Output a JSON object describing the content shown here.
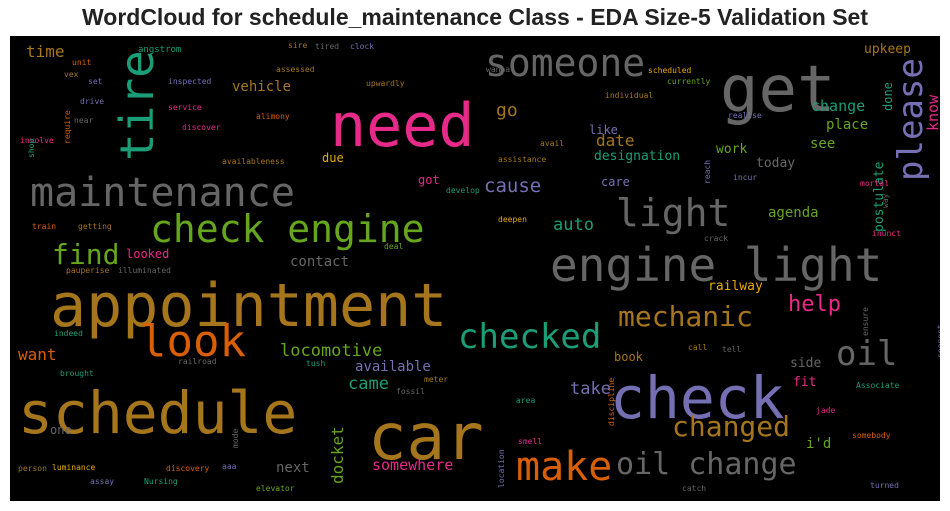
{
  "title": "WordCloud for schedule_maintenance Class - EDA Size-5 Validation Set",
  "chart_data": {
    "type": "wordcloud",
    "title": "WordCloud for schedule_maintenance Class - EDA Size-5 Validation Set",
    "background": "#000000",
    "palette": [
      "#1b9e77",
      "#d95f02",
      "#7570b3",
      "#e7298a",
      "#66a61e",
      "#e6ab02",
      "#a6761d",
      "#666666"
    ],
    "words": [
      {
        "text": "appointment",
        "color": "#a6761d",
        "vertical": false
      },
      {
        "text": "schedule",
        "color": "#a6761d",
        "vertical": false
      },
      {
        "text": "car",
        "color": "#a6761d",
        "vertical": false
      },
      {
        "text": "need",
        "color": "#e7298a",
        "vertical": false
      },
      {
        "text": "get",
        "color": "#666666",
        "vertical": false
      },
      {
        "text": "check",
        "color": "#7570b3",
        "vertical": false
      },
      {
        "text": "engine light",
        "color": "#666666",
        "vertical": false
      },
      {
        "text": "check engine",
        "color": "#66a61e",
        "vertical": false
      },
      {
        "text": "maintenance",
        "color": "#666666",
        "vertical": false
      },
      {
        "text": "someone",
        "color": "#666666",
        "vertical": false
      },
      {
        "text": "tire",
        "color": "#1b9e77",
        "vertical": true
      },
      {
        "text": "look",
        "color": "#d95f02",
        "vertical": false
      },
      {
        "text": "make",
        "color": "#d95f02",
        "vertical": false
      },
      {
        "text": "oil change",
        "color": "#666666",
        "vertical": false
      },
      {
        "text": "checked",
        "color": "#1b9e77",
        "vertical": false
      },
      {
        "text": "please",
        "color": "#7570b3",
        "vertical": true
      },
      {
        "text": "light",
        "color": "#666666",
        "vertical": false
      },
      {
        "text": "oil",
        "color": "#666666",
        "vertical": false
      },
      {
        "text": "mechanic",
        "color": "#a6761d",
        "vertical": false
      },
      {
        "text": "changed",
        "color": "#a6761d",
        "vertical": false
      },
      {
        "text": "find",
        "color": "#66a61e",
        "vertical": false
      },
      {
        "text": "help",
        "color": "#e7298a",
        "vertical": false
      },
      {
        "text": "locomotive",
        "color": "#66a61e",
        "vertical": false
      },
      {
        "text": "cause",
        "color": "#7570b3",
        "vertical": false
      },
      {
        "text": "auto",
        "color": "#1b9e77",
        "vertical": false
      },
      {
        "text": "date",
        "color": "#a6761d",
        "vertical": false
      },
      {
        "text": "go",
        "color": "#a6761d",
        "vertical": false
      },
      {
        "text": "came",
        "color": "#1b9e77",
        "vertical": false
      },
      {
        "text": "take",
        "color": "#7570b3",
        "vertical": false
      },
      {
        "text": "docket",
        "color": "#66a61e",
        "vertical": true
      },
      {
        "text": "somewhere",
        "color": "#e7298a",
        "vertical": false
      },
      {
        "text": "want",
        "color": "#d95f02",
        "vertical": false
      },
      {
        "text": "contact",
        "color": "#666666",
        "vertical": false
      },
      {
        "text": "available",
        "color": "#7570b3",
        "vertical": false
      },
      {
        "text": "next",
        "color": "#666666",
        "vertical": false
      },
      {
        "text": "change",
        "color": "#1b9e77",
        "vertical": false
      },
      {
        "text": "place",
        "color": "#66a61e",
        "vertical": false
      },
      {
        "text": "agenda",
        "color": "#66a61e",
        "vertical": false
      },
      {
        "text": "designation",
        "color": "#1b9e77",
        "vertical": false
      },
      {
        "text": "work",
        "color": "#66a61e",
        "vertical": false
      },
      {
        "text": "today",
        "color": "#666666",
        "vertical": false
      },
      {
        "text": "see",
        "color": "#66a61e",
        "vertical": false
      },
      {
        "text": "postulate",
        "color": "#1b9e77",
        "vertical": true
      },
      {
        "text": "know",
        "color": "#e7298a",
        "vertical": true
      },
      {
        "text": "done",
        "color": "#1b9e77",
        "vertical": true
      },
      {
        "text": "upkeep",
        "color": "#a6761d",
        "vertical": false
      },
      {
        "text": "railway",
        "color": "#e6ab02",
        "vertical": false
      },
      {
        "text": "book",
        "color": "#a6761d",
        "vertical": false
      },
      {
        "text": "side",
        "color": "#666666",
        "vertical": false
      },
      {
        "text": "fit",
        "color": "#e7298a",
        "vertical": false
      },
      {
        "text": "i'd",
        "color": "#66a61e",
        "vertical": false
      },
      {
        "text": "time",
        "color": "#a6761d",
        "vertical": false
      },
      {
        "text": "vehicle",
        "color": "#a6761d",
        "vertical": false
      },
      {
        "text": "due",
        "color": "#e6ab02",
        "vertical": false
      },
      {
        "text": "got",
        "color": "#e7298a",
        "vertical": false
      },
      {
        "text": "care",
        "color": "#7570b3",
        "vertical": false
      },
      {
        "text": "like",
        "color": "#7570b3",
        "vertical": false
      },
      {
        "text": "looked",
        "color": "#e7298a",
        "vertical": false
      },
      {
        "text": "one",
        "color": "#666666",
        "vertical": false
      },
      {
        "text": "angstrom",
        "color": "#1b9e77",
        "vertical": false
      },
      {
        "text": "sire",
        "color": "#a6761d",
        "vertical": false
      },
      {
        "text": "tired",
        "color": "#666666",
        "vertical": false
      },
      {
        "text": "clock",
        "color": "#7570b3",
        "vertical": false
      },
      {
        "text": "unit",
        "color": "#d95f02",
        "vertical": false
      },
      {
        "text": "vex",
        "color": "#a6761d",
        "vertical": false
      },
      {
        "text": "set",
        "color": "#7570b3",
        "vertical": false
      },
      {
        "text": "inspected",
        "color": "#7570b3",
        "vertical": false
      },
      {
        "text": "assessed",
        "color": "#a6761d",
        "vertical": false
      },
      {
        "text": "upwardly",
        "color": "#a6761d",
        "vertical": false
      },
      {
        "text": "wanna",
        "color": "#666666",
        "vertical": false
      },
      {
        "text": "scheduled",
        "color": "#e6ab02",
        "vertical": false
      },
      {
        "text": "currently",
        "color": "#66a61e",
        "vertical": false
      },
      {
        "text": "individual",
        "color": "#a6761d",
        "vertical": false
      },
      {
        "text": "drive",
        "color": "#7570b3",
        "vertical": false
      },
      {
        "text": "service",
        "color": "#e7298a",
        "vertical": false
      },
      {
        "text": "alimony",
        "color": "#d95f02",
        "vertical": false
      },
      {
        "text": "realise",
        "color": "#7570b3",
        "vertical": false
      },
      {
        "text": "near",
        "color": "#666666",
        "vertical": false
      },
      {
        "text": "discover",
        "color": "#e7298a",
        "vertical": false
      },
      {
        "text": "avail",
        "color": "#a6761d",
        "vertical": false
      },
      {
        "text": "involve",
        "color": "#e7298a",
        "vertical": false
      },
      {
        "text": "require",
        "color": "#d95f02",
        "vertical": true
      },
      {
        "text": "shop",
        "color": "#1b9e77",
        "vertical": true
      },
      {
        "text": "availableness",
        "color": "#a6761d",
        "vertical": false
      },
      {
        "text": "assistance",
        "color": "#a6761d",
        "vertical": false
      },
      {
        "text": "reach",
        "color": "#7570b3",
        "vertical": true
      },
      {
        "text": "incur",
        "color": "#7570b3",
        "vertical": false
      },
      {
        "text": "mortal",
        "color": "#e7298a",
        "vertical": false
      },
      {
        "text": "develop",
        "color": "#1b9e77",
        "vertical": false
      },
      {
        "text": "way",
        "color": "#666666",
        "vertical": true
      },
      {
        "text": "train",
        "color": "#d95f02",
        "vertical": false
      },
      {
        "text": "getting",
        "color": "#a6761d",
        "vertical": false
      },
      {
        "text": "deepen",
        "color": "#e6ab02",
        "vertical": false
      },
      {
        "text": "crack",
        "color": "#666666",
        "vertical": false
      },
      {
        "text": "inunct",
        "color": "#e7298a",
        "vertical": false
      },
      {
        "text": "deal",
        "color": "#66a61e",
        "vertical": false
      },
      {
        "text": "pauperise",
        "color": "#a6761d",
        "vertical": false
      },
      {
        "text": "illuminated",
        "color": "#666666",
        "vertical": false
      },
      {
        "text": "ensure",
        "color": "#666666",
        "vertical": true
      },
      {
        "text": "indeed",
        "color": "#1b9e77",
        "vertical": false
      },
      {
        "text": "railroad",
        "color": "#666666",
        "vertical": false
      },
      {
        "text": "tush",
        "color": "#1b9e77",
        "vertical": false
      },
      {
        "text": "call",
        "color": "#a6761d",
        "vertical": false
      },
      {
        "text": "tell",
        "color": "#666666",
        "vertical": false
      },
      {
        "text": "soonest",
        "color": "#7570b3",
        "vertical": true
      },
      {
        "text": "brought",
        "color": "#1b9e77",
        "vertical": false
      },
      {
        "text": "meter",
        "color": "#a6761d",
        "vertical": false
      },
      {
        "text": "fossil",
        "color": "#666666",
        "vertical": false
      },
      {
        "text": "Associate",
        "color": "#1b9e77",
        "vertical": false
      },
      {
        "text": "area",
        "color": "#1b9e77",
        "vertical": false
      },
      {
        "text": "discipline",
        "color": "#d95f02",
        "vertical": true
      },
      {
        "text": "jade",
        "color": "#e7298a",
        "vertical": false
      },
      {
        "text": "mode",
        "color": "#666666",
        "vertical": true
      },
      {
        "text": "smell",
        "color": "#e7298a",
        "vertical": false
      },
      {
        "text": "somebody",
        "color": "#d95f02",
        "vertical": false
      },
      {
        "text": "person",
        "color": "#a6761d",
        "vertical": false
      },
      {
        "text": "luminance",
        "color": "#e6ab02",
        "vertical": false
      },
      {
        "text": "discovery",
        "color": "#d95f02",
        "vertical": false
      },
      {
        "text": "aaa",
        "color": "#7570b3",
        "vertical": false
      },
      {
        "text": "location",
        "color": "#7570b3",
        "vertical": true
      },
      {
        "text": "assay",
        "color": "#7570b3",
        "vertical": false
      },
      {
        "text": "Nursing",
        "color": "#1b9e77",
        "vertical": false
      },
      {
        "text": "elevator",
        "color": "#66a61e",
        "vertical": false
      },
      {
        "text": "catch",
        "color": "#666666",
        "vertical": false
      },
      {
        "text": "turned",
        "color": "#7570b3",
        "vertical": false
      }
    ]
  }
}
